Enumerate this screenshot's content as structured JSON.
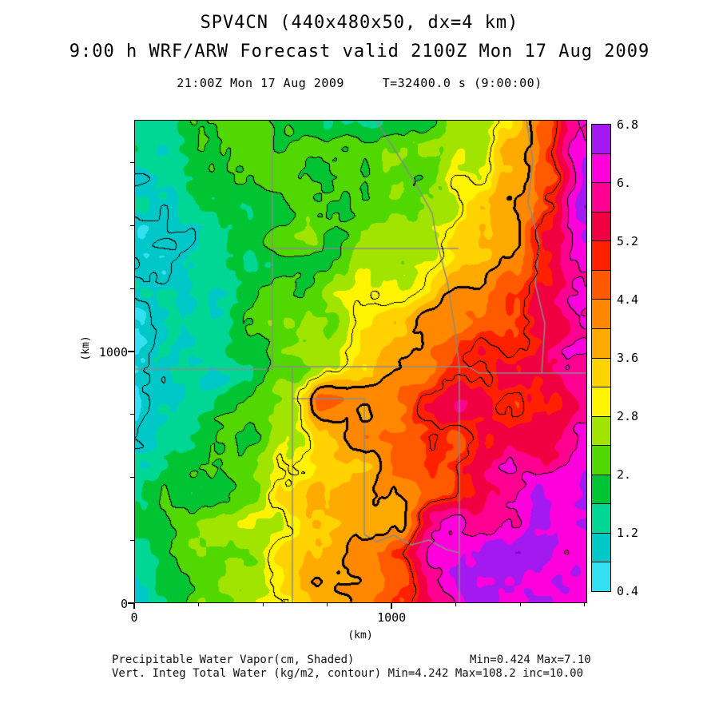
{
  "header": {
    "title": "SPV4CN (440x480x50, dx=4 km)",
    "subtitle": "9:00 h WRF/ARW Forecast valid 2100Z Mon 17 Aug 2009",
    "timestamp_line": "21:00Z Mon 17 Aug 2009     T=32400.0 s (9:00:00)"
  },
  "axes": {
    "x_label": "(km)",
    "y_label": "(km)",
    "x_ticks": [
      {
        "value": 0,
        "label": "0"
      },
      {
        "value": 1000,
        "label": "1000"
      }
    ],
    "y_ticks": [
      {
        "value": 0,
        "label": "0"
      },
      {
        "value": 1000,
        "label": "1000"
      }
    ]
  },
  "caption": {
    "line1_label": "Precipitable Water Vapor(cm, Shaded)",
    "line1_stats": "Min=0.424 Max=7.10",
    "line2": "Vert. Integ Total Water (kg/m2, contour) Min=4.242 Max=108.2 inc=10.00"
  },
  "chart_data": {
    "type": "heatmap",
    "title": "SPV4CN (440x480x50, dx=4 km)",
    "subtitle": "9:00 h WRF/ARW Forecast valid 2100Z Mon 17 Aug 2009",
    "valid_time": "21:00Z Mon 17 Aug 2009",
    "model_time": "T=32400.0 s (9:00:00)",
    "xlabel": "(km)",
    "ylabel": "(km)",
    "x_range_km": [
      0,
      1760
    ],
    "y_range_km": [
      0,
      1920
    ],
    "minor_tick_km": 250,
    "shaded_field": {
      "name": "Precipitable Water Vapor",
      "units": "cm",
      "min": 0.424,
      "max": 7.1
    },
    "contour_field": {
      "name": "Vert. Integ Total Water",
      "units": "kg/m2",
      "min": 4.242,
      "max": 108.2,
      "inc": 10.0
    },
    "colorbar": {
      "min": 0.4,
      "step": 0.4,
      "tick_labels": [
        "6.8",
        "6.",
        "5.2",
        "4.4",
        "3.6",
        "2.8",
        "2.",
        "1.2",
        "0.4"
      ],
      "colors_low_to_high": [
        "#33E0F0",
        "#00C8C8",
        "#00D795",
        "#00C432",
        "#50D800",
        "#A0E400",
        "#FFF400",
        "#FFD200",
        "#FFAA00",
        "#FF8800",
        "#FF5A00",
        "#FF2000",
        "#F00040",
        "#FF0090",
        "#FF00DC",
        "#A319F0"
      ],
      "over_color": "#8000D0"
    },
    "grid": {
      "description": "Approximate precipitable water (cm) sampled on a 13x13 grid over the plot domain; row 0 = north (top), col 0 = west (left).",
      "values": [
        [
          1.6,
          1.6,
          1.8,
          2.0,
          1.9,
          1.6,
          1.8,
          2.0,
          2.2,
          2.6,
          3.2,
          4.5,
          6.0
        ],
        [
          1.3,
          1.4,
          1.7,
          2.0,
          2.0,
          1.7,
          1.9,
          2.1,
          2.3,
          2.8,
          3.4,
          5.0,
          6.5
        ],
        [
          1.1,
          1.2,
          1.6,
          2.0,
          2.1,
          2.0,
          2.1,
          2.2,
          2.5,
          3.0,
          3.6,
          5.2,
          6.6
        ],
        [
          1.0,
          1.1,
          1.5,
          1.9,
          2.1,
          2.2,
          2.3,
          2.4,
          2.8,
          3.4,
          4.0,
          5.0,
          6.2
        ],
        [
          0.9,
          1.0,
          1.4,
          1.8,
          2.1,
          2.3,
          2.5,
          2.8,
          3.4,
          4.0,
          4.4,
          5.0,
          6.0
        ],
        [
          0.9,
          1.0,
          1.3,
          1.7,
          2.0,
          2.4,
          2.8,
          3.4,
          4.2,
          4.6,
          4.8,
          5.4,
          6.2
        ],
        [
          1.0,
          1.1,
          1.3,
          1.6,
          2.1,
          2.6,
          3.2,
          4.0,
          4.6,
          5.0,
          5.2,
          5.6,
          6.0
        ],
        [
          1.1,
          1.2,
          1.4,
          1.8,
          2.6,
          4.8,
          4.4,
          4.6,
          5.2,
          5.6,
          5.0,
          5.2,
          5.8
        ],
        [
          1.3,
          1.5,
          1.7,
          2.0,
          2.8,
          3.6,
          4.0,
          4.4,
          5.2,
          4.8,
          5.6,
          5.4,
          6.0
        ],
        [
          1.5,
          1.8,
          2.0,
          2.3,
          2.8,
          3.4,
          3.8,
          4.2,
          4.8,
          5.4,
          6.0,
          6.2,
          6.4
        ],
        [
          1.6,
          2.0,
          2.2,
          2.5,
          3.0,
          3.4,
          3.8,
          4.0,
          5.8,
          6.0,
          6.3,
          6.4,
          6.5
        ],
        [
          1.2,
          1.9,
          2.3,
          2.6,
          3.2,
          3.6,
          4.0,
          4.8,
          6.0,
          6.2,
          6.5,
          6.4,
          6.3
        ],
        [
          0.9,
          1.8,
          2.4,
          2.8,
          3.4,
          3.8,
          4.2,
          5.0,
          5.8,
          6.3,
          6.5,
          6.4,
          6.2
        ]
      ]
    },
    "contour_levels_pw_equiv": [
      1,
      2,
      3,
      4,
      5,
      6,
      7
    ],
    "thick_contour_level": 4,
    "state_border_color": "#8a8a8a"
  }
}
